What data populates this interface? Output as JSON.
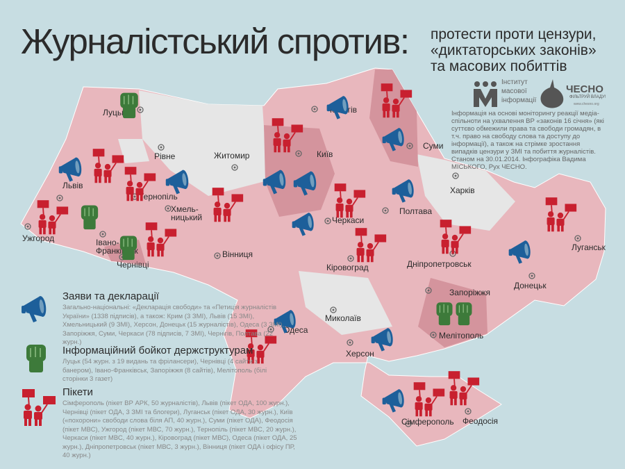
{
  "header": {
    "title": "Журналістський спротив:",
    "subtitle_lines": [
      "протести проти цензури,",
      "«диктаторських законів»",
      "та масових побиттів"
    ]
  },
  "logos": {
    "imi_lines": [
      "Інститут",
      "масової",
      "інформації"
    ],
    "chesno": "ЧЕСНО",
    "chesno_slogan": "ФІЛЬТРУЙ ВЛАДУ!",
    "chesno_url": "www.chesno.org"
  },
  "info_text": "Інформація на основі моніторингу реакції медіа-спільноти на ухвалення ВР «законів 16 січня» (які суттєво обмежили права та свободи громадян, в т.ч. право на свободу слова та доступу до інформації), а також на стрімке зростання випадків цензури у ЗМІ та побиття журналістів. Станом на 30.01.2014. Інфографіка Вадима МІСЬКОГО, Рух ЧЕСНО.",
  "colors": {
    "background": "#c7dde2",
    "region_protest": "#e8b7bd",
    "region_strong": "#d4949d",
    "region_none": "#e6e6e6",
    "megaphone": "#1d5f9a",
    "fist": "#3d7a3a",
    "picket": "#c8202f"
  },
  "legend": [
    {
      "icon": "megaphone-icon",
      "title": "Заяви та декларації",
      "text": "Загально-національні: «Декларація свободи» та «Петиція журналістів України» (1338 підписів), а також: Крим (3 ЗМІ), Львів (15 ЗМІ), Хмельницький (9 ЗМІ), Херсон, Донецьк (15 журналістів), Одеса (3 ЗМІ), Запоріжжя, Суми, Черкаси (78 підписів, 7 ЗМІ), Чернігів, Полтава (22 журн.)"
    },
    {
      "icon": "fist-icon",
      "title": "Інформаційний бойкот держструктурам",
      "text": "Луцьк (54 журн. з 19 видань та фрілансери), Чернівці (4 сайти з банером), Івано-Франківськ, Запоріжжя (8 сайтів), Мелітополь (білі сторінки 3 газет)"
    },
    {
      "icon": "picket-icon",
      "title": "Пікети",
      "text": "Сімферополь (пікет ВР АРК, 50 журналістів), Львів (пікет ОДА, 100 журн.), Чернівці (пікет ОДА, 3 ЗМІ та блогери), Луганськ (пікет ОДА, 30 журн.), Київ («похорони» свободи слова біля АП, 40 журн.), Суми (пікет ОДА), Феодосія (пікет МВС), Ужгород (пікет МВС, 70 журн.), Тернопіль (пікет МВС, 20 журн.), Черкаси (пікет МВС, 40 журн.), Кіровоград (пікет МВС), Одеса (пікет ОДА, 25 журн.), Дніпропетровськ (пікет МВС, 3 журн.), Вінниця (пікет ОДА і офісу ПР, 40 журн.)"
    }
  ],
  "cities": [
    "Луцьк",
    "Рівне",
    "Житомир",
    "Чернігів",
    "Суми",
    "Київ",
    "Черкаси",
    "Полтава",
    "Харків",
    "Луганськ",
    "Донецьк",
    "Дніпропетровськ",
    "Запоріжжя",
    "Мелітополь",
    "Кіровоград",
    "Вінниця",
    "Хмель-ницький",
    "Тернопіль",
    "Львів",
    "Ужгород",
    "Івано-Франківськ",
    "Чернівці",
    "Одеса",
    "Миколаїв",
    "Херсон",
    "Сімферополь",
    "Феодосія"
  ]
}
